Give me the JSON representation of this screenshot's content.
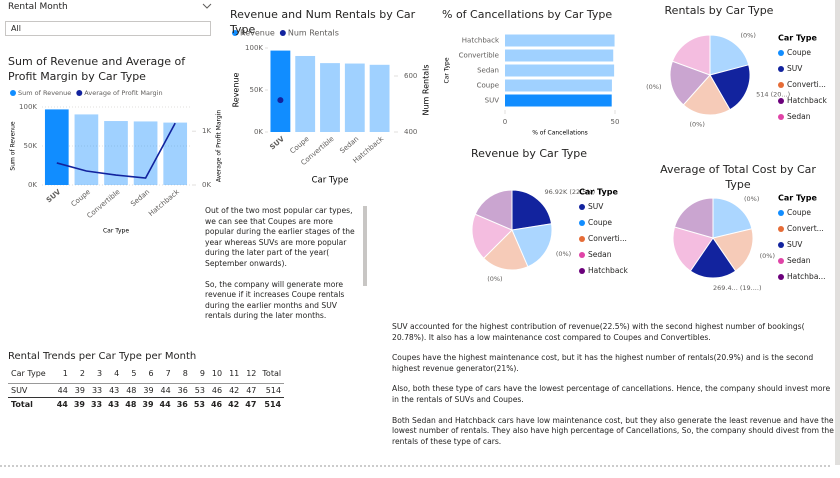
{
  "slicer": {
    "label": "Rental Month",
    "value": "All"
  },
  "chart_data": [
    {
      "type": "combo",
      "title": "Sum of Revenue and Average of Profit Margin by Car Type",
      "categories": [
        "SUV",
        "Coupe",
        "Convertible",
        "Sedan",
        "Hatchback"
      ],
      "highlight": "SUV",
      "series": [
        {
          "name": "Sum of Revenue",
          "type": "bar",
          "color": "#118dff",
          "values": [
            96920,
            90500,
            82000,
            81500,
            80000
          ]
        },
        {
          "name": "Average of Profit Margin",
          "type": "line",
          "axis": "y2",
          "color": "#12239e",
          "values": [
            410,
            260,
            185,
            130,
            1150
          ]
        }
      ],
      "xlabel": "Car Type",
      "ylabel": "Sum of Revenue",
      "y2label": "Average of Profit Margin",
      "ylim": [
        0,
        100000
      ],
      "yticks": [
        {
          "value": 0,
          "label": "0K"
        },
        {
          "value": 50000,
          "label": "50K"
        },
        {
          "value": 100000,
          "label": "100K"
        }
      ],
      "y2lim": [
        0,
        1450
      ],
      "y2ticks": [
        {
          "value": 0,
          "label": "0K"
        },
        {
          "value": 1000,
          "label": "1K"
        }
      ],
      "grid": true,
      "legend": "top-left"
    },
    {
      "type": "combo",
      "title": "Revenue and Num Rentals by Car Type",
      "categories": [
        "SUV",
        "Coupe",
        "Convertible",
        "Sedan",
        "Hatchback"
      ],
      "highlight": "SUV",
      "series": [
        {
          "name": "Revenue",
          "type": "bar",
          "color": "#118dff",
          "values": [
            96920,
            90500,
            82000,
            81500,
            80000
          ]
        },
        {
          "name": "Num Rentals",
          "type": "dot",
          "axis": "y2",
          "color": "#12239e",
          "values": [
            514,
            null,
            null,
            null,
            null
          ]
        }
      ],
      "xlabel": "Car Type",
      "ylabel": "Revenue",
      "y2label": "Num Rentals",
      "ylim": [
        0,
        100000
      ],
      "yticks": [
        {
          "value": 0,
          "label": "0K"
        },
        {
          "value": 50000,
          "label": "50K"
        },
        {
          "value": 100000,
          "label": "100K"
        }
      ],
      "y2lim": [
        400,
        700
      ],
      "y2ticks": [
        400,
        600
      ],
      "grid": false,
      "legend": "top-left"
    },
    {
      "type": "hbar",
      "title": "% of Cancellations by Car Type",
      "categories": [
        "Hatchback",
        "Convertible",
        "Sedan",
        "Coupe",
        "SUV"
      ],
      "highlight": "SUV",
      "values": [
        49.8,
        49.2,
        49.6,
        48.6,
        48.5
      ],
      "color": "#118dff",
      "xlabel": "% of Cancellations",
      "ylabel": "Car Type",
      "xlim": [
        0,
        50
      ],
      "xticks": [
        0,
        50
      ]
    },
    {
      "type": "pie",
      "title": "Rentals by Car Type",
      "legend_title": "Car Type",
      "highlight": "SUV",
      "categories": [
        "Coupe",
        "SUV",
        "Converti...",
        "Hatchback",
        "Sedan"
      ],
      "colors": [
        "#118dff",
        "#12239e",
        "#e66c37",
        "#6b007b",
        "#e044a7"
      ],
      "values": [
        517,
        514,
        492,
        470,
        480
      ],
      "value_labels": [
        null,
        "514 (20...)",
        null,
        null,
        null
      ],
      "annotations": [
        "(0%)",
        "(0%)",
        "(0%)"
      ]
    },
    {
      "type": "pie",
      "title": "Revenue by Car Type",
      "legend_title": "Car Type",
      "highlight": "SUV",
      "categories": [
        "SUV",
        "Coupe",
        "Converti...",
        "Sedan",
        "Hatchback"
      ],
      "colors": [
        "#12239e",
        "#118dff",
        "#e66c37",
        "#e044a7",
        "#6b007b"
      ],
      "values": [
        96920,
        90500,
        82000,
        81500,
        80000
      ],
      "value_labels": [
        "96.92K (22.5%)",
        null,
        null,
        null,
        null
      ],
      "annotations": [
        "(0%)",
        "(0%)"
      ]
    },
    {
      "type": "pie",
      "title": "Average of Total Cost by Car Type",
      "legend_title": "Car Type",
      "highlight": "SUV",
      "categories": [
        "Coupe",
        "Convert...",
        "SUV",
        "Sedan",
        "Hatchba..."
      ],
      "colors": [
        "#118dff",
        "#e66c37",
        "#12239e",
        "#e044a7",
        "#6b007b"
      ],
      "values": [
        300,
        270,
        269.4,
        280,
        290
      ],
      "value_labels": [
        null,
        null,
        "269.4... (19....)",
        null,
        null
      ],
      "annotations": [
        "(0%)",
        "(0%)"
      ]
    }
  ],
  "notes": {
    "left": [
      "Out of the two most popular car types, we can see that Coupes are more popular during the earlier stages of the year whereas SUVs are more popular during the later part of the year( September onwards).",
      "So, the company will generate more revenue if it increases Coupe rentals during the earlier months and SUV rentals during the later months."
    ],
    "right": [
      "SUV accounted for the highest contribution of revenue(22.5%) with the second highest number of bookings( 20.78%). It also has a low maintenance cost compared to Coupes and Convertibles.",
      "Coupes have the highest maintenance cost, but it has the highest number of rentals(20.9%) and is the second highest revenue generator(21%).",
      "Also, both these type of cars have the lowest percentage of cancellations. Hence, the company should invest more in the rentals of SUVs and Coupes.",
      "Both Sedan and Hatchback cars have low maintenance cost, but they also generate the least revenue and have the lowest number of rentals. They also have high percentage of Cancellations, So, the company should divest from the rentals of these type of cars."
    ]
  },
  "table": {
    "title": "Rental Trends per Car Type per Month",
    "header": [
      "Car Type",
      "1",
      "2",
      "3",
      "4",
      "5",
      "6",
      "7",
      "8",
      "9",
      "10",
      "11",
      "12",
      "Total"
    ],
    "rows": [
      [
        "SUV",
        44,
        39,
        33,
        43,
        48,
        39,
        44,
        36,
        53,
        46,
        42,
        47,
        514
      ],
      [
        "Total",
        44,
        39,
        33,
        43,
        48,
        39,
        44,
        36,
        53,
        46,
        42,
        47,
        514
      ]
    ]
  }
}
